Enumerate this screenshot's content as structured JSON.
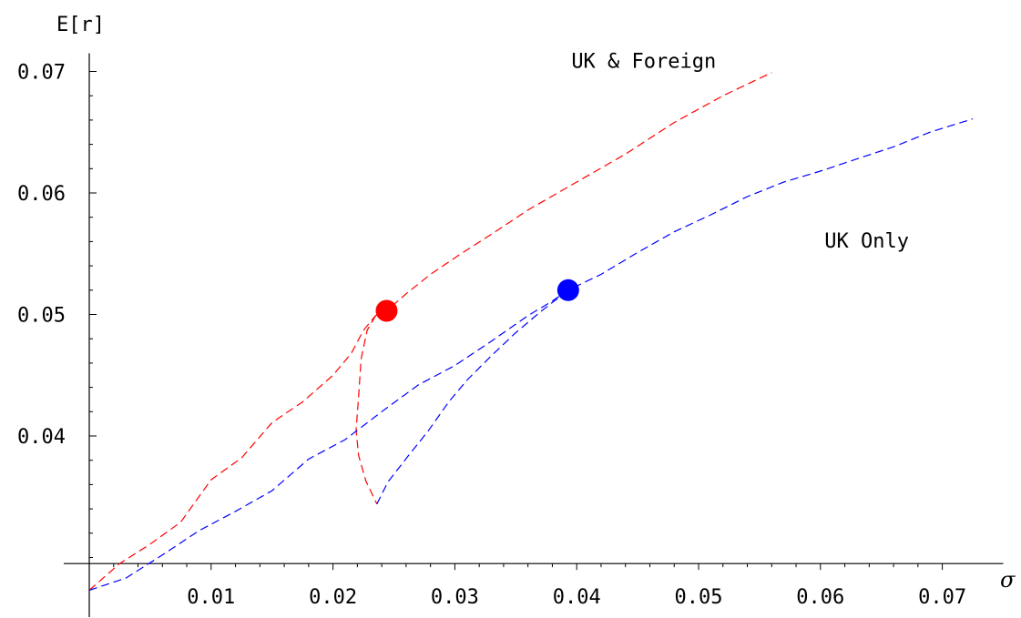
{
  "chart_data": {
    "type": "line",
    "ylabel": "E[r]",
    "xlabel": "σ",
    "xlim": [
      0.0,
      0.075
    ],
    "ylim": [
      0.0295,
      0.0715
    ],
    "x_ticks": [
      0.01,
      0.02,
      0.03,
      0.04,
      0.05,
      0.06,
      0.07
    ],
    "x_tick_labels": [
      "0.01",
      "0.02",
      "0.03",
      "0.04",
      "0.05",
      "0.06",
      "0.07"
    ],
    "y_ticks": [
      0.04,
      0.05,
      0.06,
      0.07
    ],
    "y_tick_labels": [
      "0.04",
      "0.05",
      "0.06",
      "0.07"
    ],
    "grid": false,
    "colors": {
      "uk_foreign": "#ff0000",
      "uk_only": "#0000ff"
    },
    "series": [
      {
        "name": "UK & Foreign",
        "style": "dashed",
        "points": [
          [
            0.0,
            0.0273
          ],
          [
            0.0025,
            0.0295
          ],
          [
            0.005,
            0.0311
          ],
          [
            0.0075,
            0.0329
          ],
          [
            0.01,
            0.0364
          ],
          [
            0.0125,
            0.0382
          ],
          [
            0.015,
            0.0411
          ],
          [
            0.0175,
            0.0428
          ],
          [
            0.02,
            0.045
          ],
          [
            0.0215,
            0.0468
          ],
          [
            0.0225,
            0.0487
          ],
          [
            0.0235,
            0.0499
          ],
          [
            0.0244,
            0.0503
          ],
          [
            0.026,
            0.0517
          ],
          [
            0.028,
            0.0533
          ],
          [
            0.0305,
            0.055
          ],
          [
            0.033,
            0.0566
          ],
          [
            0.036,
            0.0586
          ],
          [
            0.04,
            0.0609
          ],
          [
            0.044,
            0.0632
          ],
          [
            0.048,
            0.0658
          ],
          [
            0.052,
            0.068
          ],
          [
            0.056,
            0.0699
          ]
        ]
      },
      {
        "name": "UK & Foreign (lower branch)",
        "style": "dashed",
        "points": [
          [
            0.0235,
            0.0499
          ],
          [
            0.0228,
            0.0487
          ],
          [
            0.0223,
            0.0463
          ],
          [
            0.0221,
            0.0432
          ],
          [
            0.0219,
            0.0405
          ],
          [
            0.0221,
            0.0384
          ],
          [
            0.0227,
            0.0363
          ],
          [
            0.0236,
            0.0344
          ]
        ]
      },
      {
        "name": "UK Only",
        "style": "dashed",
        "points": [
          [
            0.0,
            0.0273
          ],
          [
            0.003,
            0.0283
          ],
          [
            0.006,
            0.0302
          ],
          [
            0.009,
            0.0322
          ],
          [
            0.012,
            0.0338
          ],
          [
            0.015,
            0.0355
          ],
          [
            0.018,
            0.0381
          ],
          [
            0.021,
            0.0397
          ],
          [
            0.024,
            0.042
          ],
          [
            0.027,
            0.0442
          ],
          [
            0.03,
            0.0458
          ],
          [
            0.033,
            0.0478
          ],
          [
            0.036,
            0.0499
          ],
          [
            0.038,
            0.0511
          ],
          [
            0.0393,
            0.052
          ],
          [
            0.042,
            0.0533
          ],
          [
            0.045,
            0.0551
          ],
          [
            0.048,
            0.0568
          ],
          [
            0.051,
            0.0582
          ],
          [
            0.054,
            0.0597
          ],
          [
            0.057,
            0.0609
          ],
          [
            0.06,
            0.0618
          ],
          [
            0.063,
            0.0628
          ],
          [
            0.066,
            0.0638
          ],
          [
            0.069,
            0.065
          ],
          [
            0.0725,
            0.0661
          ]
        ]
      },
      {
        "name": "UK Only (lower branch)",
        "style": "dashed",
        "points": [
          [
            0.0236,
            0.0344
          ],
          [
            0.0245,
            0.0362
          ],
          [
            0.0262,
            0.0384
          ],
          [
            0.0278,
            0.0404
          ],
          [
            0.0295,
            0.0428
          ],
          [
            0.031,
            0.0446
          ],
          [
            0.033,
            0.0466
          ],
          [
            0.035,
            0.0485
          ],
          [
            0.037,
            0.0502
          ],
          [
            0.0393,
            0.052
          ]
        ]
      }
    ],
    "markers": [
      {
        "name": "UK & Foreign portfolio",
        "x": 0.0244,
        "y": 0.0503,
        "color": "#ff0000"
      },
      {
        "name": "UK Only portfolio",
        "x": 0.0393,
        "y": 0.052,
        "color": "#0000ff"
      }
    ],
    "annotations": [
      {
        "text": "UK & Foreign",
        "x": 0.0455,
        "y": 0.0703
      },
      {
        "text": "UK Only",
        "x": 0.0638,
        "y": 0.0555
      }
    ]
  }
}
